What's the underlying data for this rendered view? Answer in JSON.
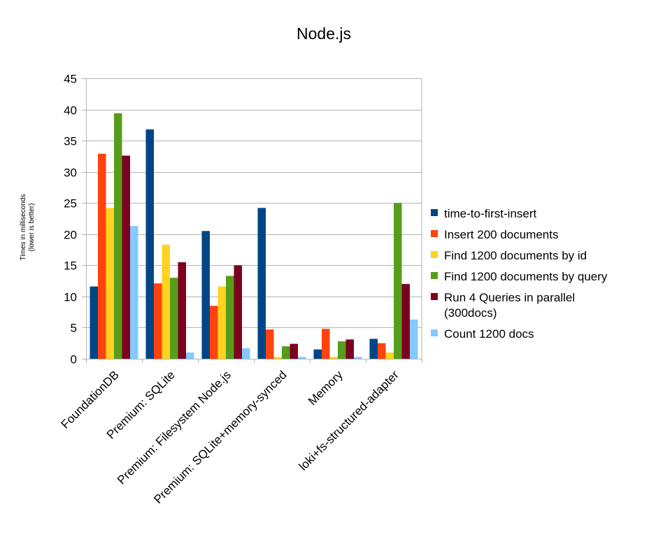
{
  "chart_data": {
    "type": "bar",
    "title": "Node.js",
    "ylabel": "Times in milliseconds",
    "ylabel_sub": "(lower is better)",
    "xlabel": "",
    "ylim": [
      0,
      45
    ],
    "yticks": [
      0,
      5,
      10,
      15,
      20,
      25,
      30,
      35,
      40,
      45
    ],
    "grid": true,
    "legend_position": "right",
    "categories": [
      "FoundationDB",
      "Premium: SQLite",
      "Premium: Filesystem Node.js",
      "Premium: SQLite+memory-synced",
      "Memory",
      "loki+fs-structured-adapter"
    ],
    "series": [
      {
        "name": "time-to-first-insert",
        "legend_lines": [
          "time-to-first-insert"
        ],
        "color": "#004586",
        "values": [
          11.6,
          36.8,
          20.5,
          24.2,
          1.5,
          3.2
        ]
      },
      {
        "name": "Insert 200 documents",
        "legend_lines": [
          "Insert 200 documents"
        ],
        "color": "#ff420e",
        "values": [
          32.9,
          12.1,
          8.5,
          4.7,
          4.8,
          2.5
        ]
      },
      {
        "name": "Find 1200 documents by id",
        "legend_lines": [
          "Find 1200 documents by id"
        ],
        "color": "#ffd320",
        "values": [
          24.2,
          18.3,
          11.6,
          0.3,
          0.3,
          1.0
        ]
      },
      {
        "name": "Find 1200 documents by query",
        "legend_lines": [
          "Find 1200 documents by query"
        ],
        "color": "#579d1c",
        "values": [
          39.4,
          13.0,
          13.3,
          2.0,
          2.8,
          25.0
        ]
      },
      {
        "name": "Run 4 Queries in parallel (300docs)",
        "legend_lines": [
          "Run 4 Queries in parallel",
          "(300docs)"
        ],
        "color": "#7e0021",
        "values": [
          32.6,
          15.5,
          15.0,
          2.4,
          3.1,
          12.0
        ]
      },
      {
        "name": "Count 1200 docs",
        "legend_lines": [
          "Count 1200 docs"
        ],
        "color": "#83caff",
        "values": [
          21.3,
          1.0,
          1.7,
          0.3,
          0.3,
          6.3
        ]
      }
    ]
  }
}
